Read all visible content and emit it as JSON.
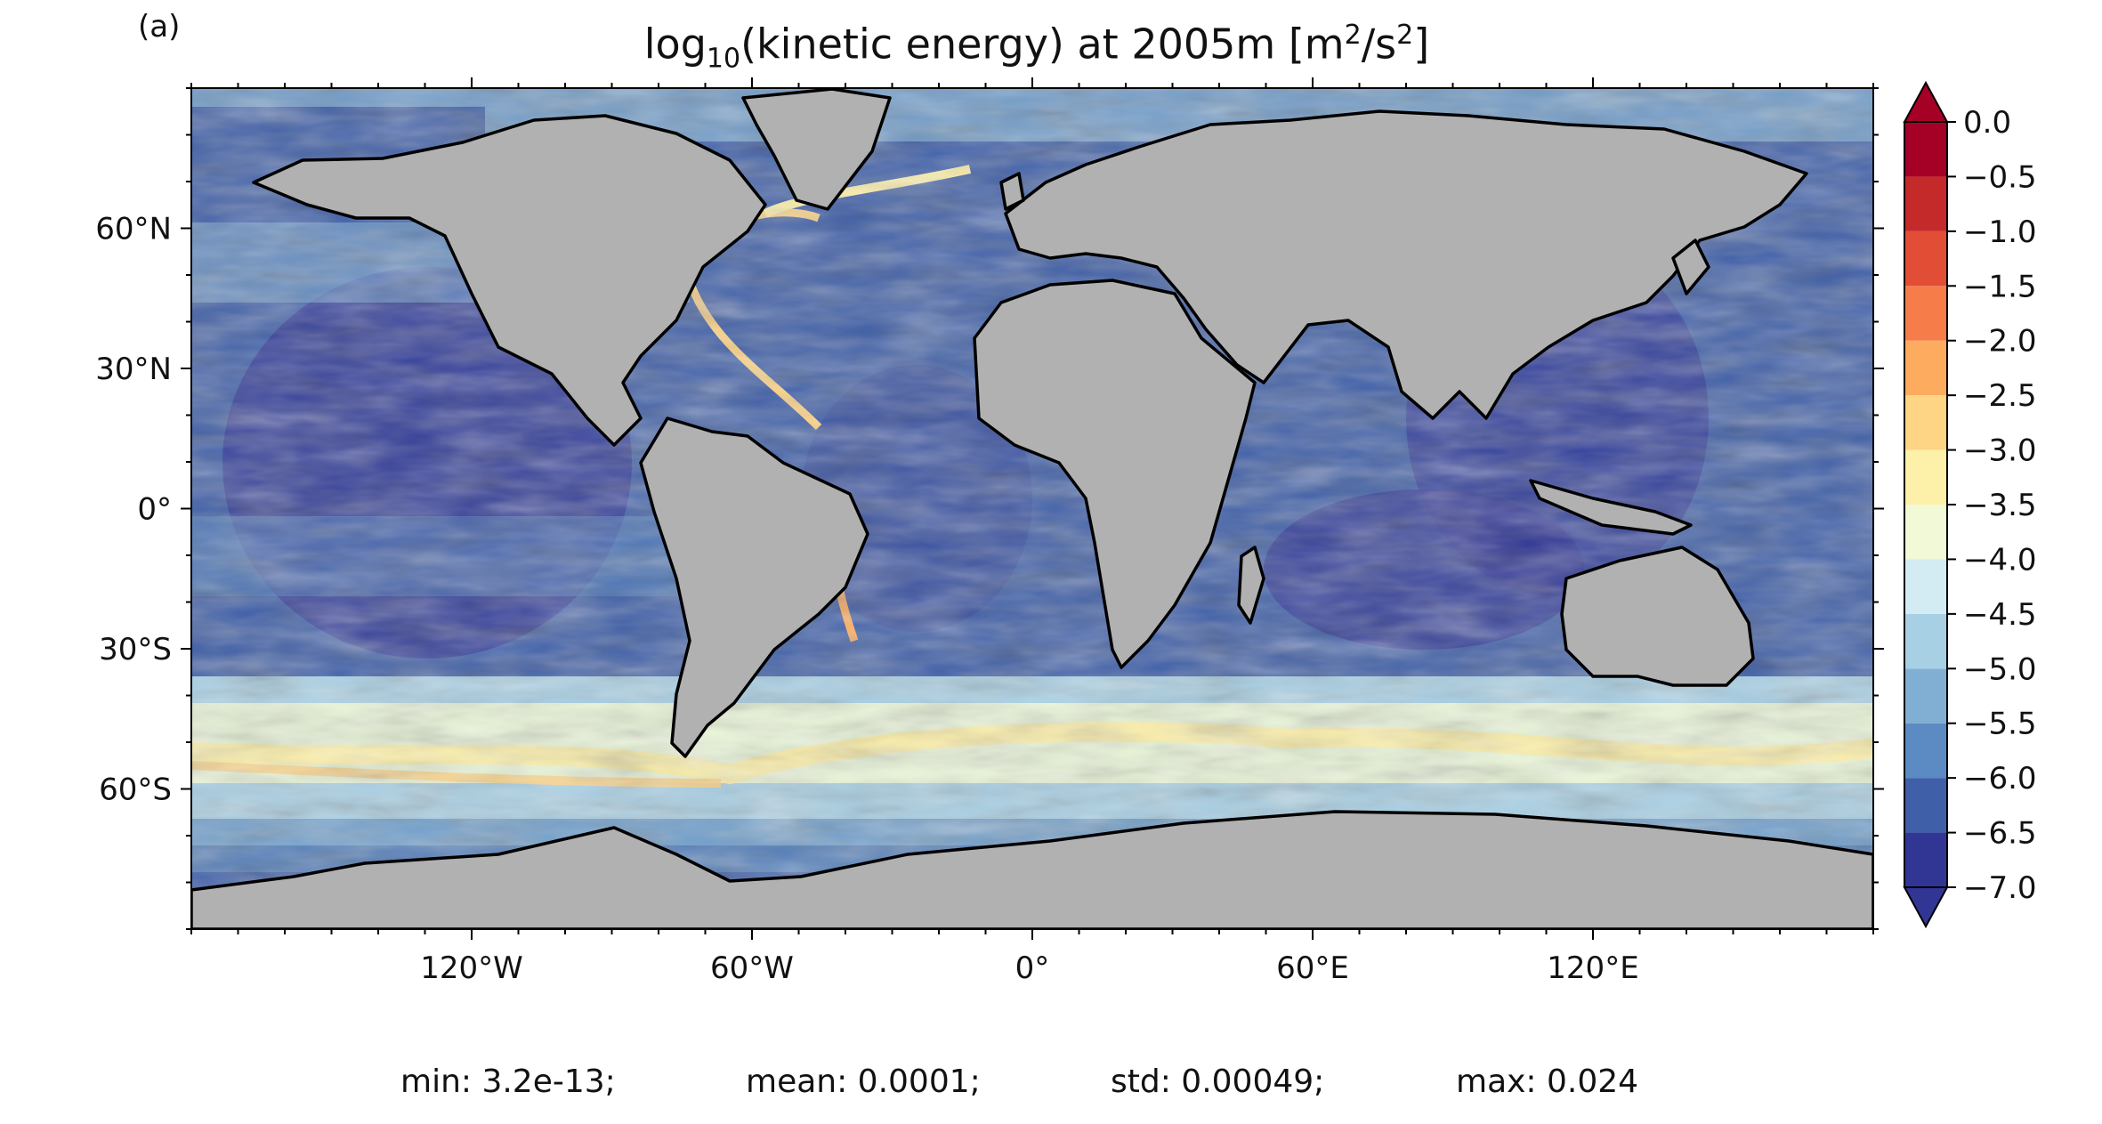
{
  "figure": {
    "panel_label": "(a)",
    "title": "log10(kinetic energy) at 2005m [m2/s2]",
    "title_parts": {
      "pre": "log",
      "sub": "10",
      "mid": "(kinetic energy) at 2005m [m",
      "sup1": "2",
      "sep": "/s",
      "sup2": "2",
      "post": "]"
    },
    "stats": {
      "min": "min: 3.2e-13;",
      "mean": "mean: 0.0001;",
      "std": "std: 0.00049;",
      "max": "max: 0.024"
    }
  },
  "chart_data": {
    "type": "heatmap",
    "title": "log10(kinetic energy) at 2005m [m2/s2]",
    "variable": "log10(kinetic energy)",
    "depth": "2005m",
    "units": "m2/s2",
    "map_projection": "PlateCarree",
    "x_range": [
      -180,
      180
    ],
    "y_range": [
      -90,
      90
    ],
    "x_ticks": [
      {
        "value": -120,
        "label": "120°W"
      },
      {
        "value": -60,
        "label": "60°W"
      },
      {
        "value": 0,
        "label": "0°"
      },
      {
        "value": 60,
        "label": "60°E"
      },
      {
        "value": 120,
        "label": "120°E"
      }
    ],
    "y_ticks": [
      {
        "value": 60,
        "label": "60°N"
      },
      {
        "value": 30,
        "label": "30°N"
      },
      {
        "value": 0,
        "label": "0°"
      },
      {
        "value": -30,
        "label": "30°S"
      },
      {
        "value": -60,
        "label": "60°S"
      }
    ],
    "colorbar": {
      "range": [
        -7.0,
        0.0
      ],
      "extend": "both",
      "colormap": "RdYlBu_r",
      "ticks": [
        {
          "value": 0.0,
          "label": "0.0"
        },
        {
          "value": -0.5,
          "label": "−0.5"
        },
        {
          "value": -1.0,
          "label": "−1.0"
        },
        {
          "value": -1.5,
          "label": "−1.5"
        },
        {
          "value": -2.0,
          "label": "−2.0"
        },
        {
          "value": -2.5,
          "label": "−2.5"
        },
        {
          "value": -3.0,
          "label": "−3.0"
        },
        {
          "value": -3.5,
          "label": "−3.5"
        },
        {
          "value": -4.0,
          "label": "−4.0"
        },
        {
          "value": -4.5,
          "label": "−4.5"
        },
        {
          "value": -5.0,
          "label": "−5.0"
        },
        {
          "value": -5.5,
          "label": "−5.5"
        },
        {
          "value": -6.0,
          "label": "−6.0"
        },
        {
          "value": -6.5,
          "label": "−6.5"
        },
        {
          "value": -7.0,
          "label": "−7.0"
        }
      ],
      "levels": [
        {
          "from": -7.0,
          "to": -6.5,
          "color": "#313695"
        },
        {
          "from": -6.5,
          "to": -6.0,
          "color": "#3f5fa8"
        },
        {
          "from": -6.0,
          "to": -5.5,
          "color": "#5b8bc2"
        },
        {
          "from": -5.5,
          "to": -5.0,
          "color": "#81afd3"
        },
        {
          "from": -5.0,
          "to": -4.5,
          "color": "#a8d0e5"
        },
        {
          "from": -4.5,
          "to": -4.0,
          "color": "#d3ebf3"
        },
        {
          "from": -4.0,
          "to": -3.5,
          "color": "#f1f9d6"
        },
        {
          "from": -3.5,
          "to": -3.0,
          "color": "#fdf0a8"
        },
        {
          "from": -3.0,
          "to": -2.5,
          "color": "#fed485"
        },
        {
          "from": -2.5,
          "to": -2.0,
          "color": "#fdac5f"
        },
        {
          "from": -2.0,
          "to": -1.5,
          "color": "#f67c4a"
        },
        {
          "from": -1.5,
          "to": -1.0,
          "color": "#e24d36"
        },
        {
          "from": -1.0,
          "to": -0.5,
          "color": "#c52a2b"
        },
        {
          "from": -0.5,
          "to": 0.0,
          "color": "#a50026"
        }
      ],
      "under_color": "#313695",
      "over_color": "#a50026"
    },
    "land_color": "#b1b1b1",
    "statistics": {
      "min": 3.2e-13,
      "mean": 0.0001,
      "std": 0.00049,
      "max": 0.024
    }
  }
}
